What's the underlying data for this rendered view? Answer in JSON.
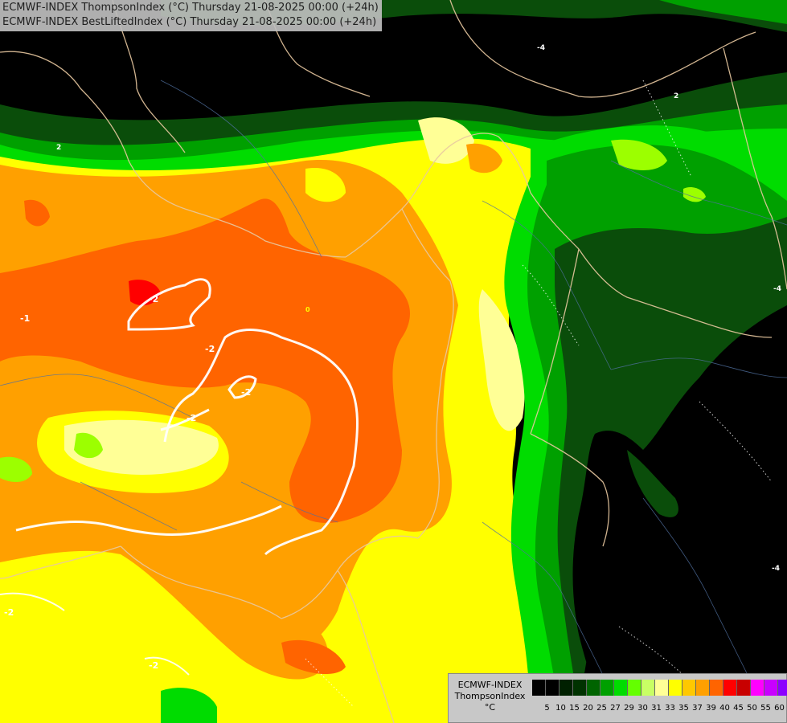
{
  "header": {
    "line1": "ECMWF-INDEX ThompsonIndex (°C) Thursday 21-08-2025 00:00 (+24h)",
    "line2": "ECMWF-INDEX BestLiftedIndex (°C) Thursday 21-08-2025 00:00 (+24h)"
  },
  "legend": {
    "model": "ECMWF-INDEX",
    "variable": "ThompsonIndex",
    "unit": "°C",
    "ticks": [
      "5",
      "10",
      "15",
      "20",
      "25",
      "27",
      "29",
      "30",
      "31",
      "33",
      "35",
      "37",
      "39",
      "40",
      "45",
      "50",
      "55",
      "60"
    ],
    "colors": [
      "#000000",
      "#000000",
      "#002000",
      "#003200",
      "#006400",
      "#00a000",
      "#00dc00",
      "#64ff00",
      "#c8ff64",
      "#ffff96",
      "#ffff00",
      "#ffc800",
      "#ffa000",
      "#ff6400",
      "#ff0000",
      "#c80000",
      "#ff00ff",
      "#c800ff",
      "#8c00ff",
      "#0000ff"
    ]
  },
  "contour_labels": [
    "-2",
    "-2",
    "-2",
    "-2",
    "-2",
    "-2",
    "-1",
    "-4",
    "-4",
    "-4",
    "2",
    "2",
    "0"
  ]
}
